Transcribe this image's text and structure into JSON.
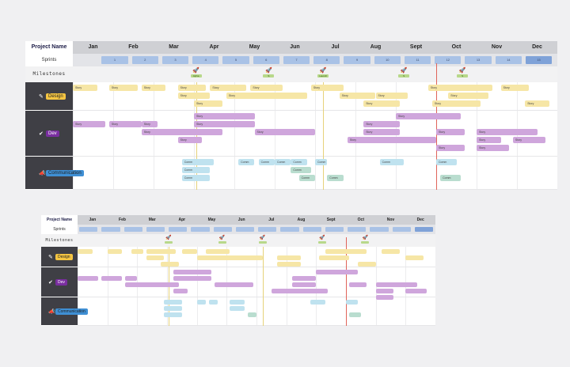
{
  "board_primary": {
    "corner_label": "Project Name",
    "sprints_label": "Sprints",
    "milestones_label": "Milestones",
    "months": [
      "Jan",
      "Feb",
      "Mar",
      "Apr",
      "May",
      "Jun",
      "Jul",
      "Aug",
      "Sept",
      "Oct",
      "Nov",
      "Dec"
    ],
    "sprints": [
      "1",
      "2",
      "3",
      "4",
      "5",
      "6",
      "7",
      "8",
      "9",
      "10",
      "11",
      "12",
      "13",
      "14",
      "15"
    ],
    "milestones": [
      {
        "icon": "rocket-icon",
        "label": "Alpha"
      },
      {
        "icon": "rocket-icon",
        "label": "S"
      },
      {
        "icon": "rocket-icon",
        "label": "Launch"
      },
      {
        "icon": "rocket-icon",
        "label": "S"
      },
      {
        "icon": "rocket-icon",
        "label": "S"
      }
    ],
    "lanes": [
      {
        "name": "Design",
        "icon": "pencil-icon",
        "color": "#f5c542"
      },
      {
        "name": "Dev",
        "icon": "check-icon",
        "color": "#7a2ea0"
      },
      {
        "name": "Communication",
        "icon": "megaphone-icon",
        "color": "#3f8fd4"
      }
    ],
    "bar_label": "Story",
    "comm_label": "Comm",
    "colors": {
      "design": "#f6e6a6",
      "dev": "#cfa6dc",
      "comm": "#bfe2ef",
      "comm2": "#b9ddcf",
      "sprint": "#a9c2e6",
      "today_line": "#e0645a"
    }
  },
  "board_secondary": {
    "corner_label": "Project Name",
    "sprints_label": "Sprints",
    "milestones_label": "Milestones",
    "months": [
      "Jan",
      "Feb",
      "Mar",
      "Apr",
      "May",
      "Jun",
      "Jul",
      "Aug",
      "Sept",
      "Oct",
      "Nov",
      "Dec"
    ],
    "lanes": [
      {
        "name": "Design",
        "icon": "pencil-icon",
        "color": "#f5c542"
      },
      {
        "name": "Dev",
        "icon": "check-icon",
        "color": "#7a2ea0"
      },
      {
        "name": "Communication",
        "icon": "megaphone-icon",
        "color": "#3f8fd4"
      }
    ]
  }
}
